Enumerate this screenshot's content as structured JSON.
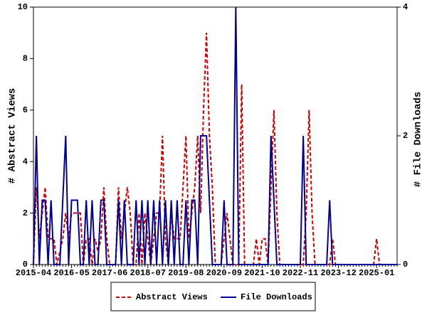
{
  "chart_data": {
    "type": "line",
    "y_label": "# Abstract Views",
    "y2_label": "# File Downloads",
    "categories": [
      "2015-04",
      null,
      null,
      null,
      null,
      null,
      null,
      null,
      null,
      null,
      null,
      null,
      null,
      "2016-05",
      null,
      null,
      null,
      null,
      null,
      null,
      null,
      null,
      null,
      null,
      null,
      null,
      "2017-06",
      null,
      null,
      null,
      null,
      null,
      null,
      null,
      null,
      null,
      null,
      null,
      null,
      "2018-07",
      null,
      null,
      null,
      null,
      null,
      null,
      null,
      null,
      null,
      null,
      null,
      null,
      "2019-08",
      null,
      null,
      null,
      null,
      null,
      null,
      null,
      null,
      null,
      null,
      null,
      null,
      "2020-09",
      null,
      null,
      null,
      null,
      null,
      null,
      null,
      null,
      null,
      null,
      null,
      null,
      "2021-10",
      null,
      null,
      null,
      null,
      null,
      null,
      null,
      null,
      null,
      null,
      null,
      null,
      "2022-11",
      null,
      null,
      null,
      null,
      null,
      null,
      null,
      null,
      null,
      null,
      null,
      null,
      "2023-12",
      null,
      null,
      null,
      null,
      null,
      null,
      null,
      null,
      null,
      null,
      null,
      null,
      "2025-01",
      null,
      null,
      null,
      null,
      null,
      null,
      null
    ],
    "series": [
      {
        "name": "Abstract Views",
        "color": "#cc0000",
        "dash": true,
        "axis": "y",
        "values": [
          0,
          3,
          1,
          2,
          3,
          1,
          1,
          1,
          0,
          0.5,
          1,
          2,
          1,
          2,
          2,
          2,
          2,
          0,
          1,
          1,
          0,
          1,
          0.5,
          1,
          3,
          1,
          0,
          0,
          0,
          3,
          1,
          2,
          3,
          2,
          0,
          0,
          2,
          0,
          2,
          1,
          0,
          1,
          2,
          2,
          5,
          1,
          0,
          2,
          1,
          1,
          1,
          3,
          5,
          1,
          2,
          3,
          5,
          2,
          6,
          9,
          5,
          3,
          0,
          0,
          0,
          1,
          2,
          1,
          0,
          0,
          0,
          7,
          0,
          0,
          0,
          0,
          1,
          0,
          1,
          1,
          0,
          3,
          6,
          2,
          0,
          0,
          0,
          0,
          0,
          0,
          0,
          0,
          0,
          2,
          6,
          2,
          0,
          0,
          0,
          0,
          0,
          0,
          1,
          0,
          0,
          0,
          0,
          0,
          0,
          0,
          0,
          0,
          0,
          0,
          0,
          0,
          0,
          1,
          0,
          0,
          0,
          0,
          0,
          0,
          0
        ]
      },
      {
        "name": "File Downloads",
        "color": "#000099",
        "dash": false,
        "axis": "y2",
        "values": [
          0,
          2,
          0,
          1,
          1,
          0,
          1,
          0,
          0,
          0,
          1,
          2,
          0,
          1,
          1,
          1,
          0,
          0,
          1,
          0,
          1,
          0,
          0,
          1,
          1,
          0,
          0,
          0,
          0,
          1,
          0,
          1,
          0,
          0,
          0,
          1,
          0,
          1,
          0,
          1,
          0,
          1,
          0,
          1,
          0,
          1,
          0,
          1,
          0,
          1,
          0,
          0,
          1,
          0,
          1,
          1,
          0,
          2,
          2,
          2,
          1,
          0,
          0,
          0,
          0,
          1,
          0,
          0,
          0,
          4,
          0,
          0,
          0,
          0,
          0,
          0,
          0,
          0,
          0,
          0,
          0,
          2,
          1,
          0,
          0,
          0,
          0,
          0,
          0,
          0,
          0,
          0,
          2,
          0,
          0,
          0,
          0,
          0,
          0,
          0,
          0,
          1,
          0,
          0,
          0,
          0,
          0,
          0,
          0,
          0,
          0,
          0,
          0,
          0,
          0,
          0,
          0,
          0,
          0,
          0,
          0,
          0,
          0,
          0,
          0
        ]
      }
    ],
    "ylim": [
      0,
      10
    ],
    "yticks": [
      0,
      2,
      4,
      6,
      8,
      10
    ],
    "y2lim": [
      0,
      4
    ],
    "y2ticks": [
      0,
      2,
      4
    ],
    "grid": false,
    "legend": "bottom"
  }
}
